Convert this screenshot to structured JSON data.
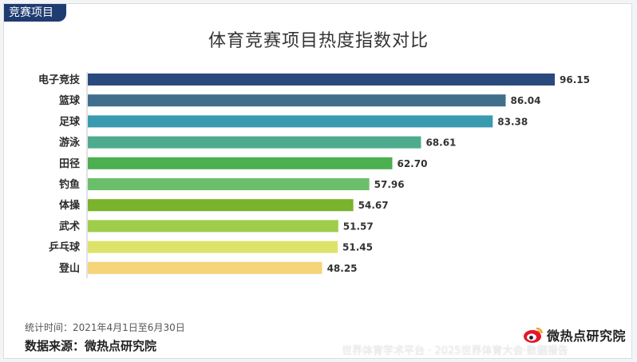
{
  "tag": "竞赛项目",
  "chart_data": {
    "type": "bar",
    "orientation": "horizontal",
    "title": "体育竞赛项目热度指数对比",
    "categories": [
      "电子竞技",
      "篮球",
      "足球",
      "游泳",
      "田径",
      "钓鱼",
      "体操",
      "武术",
      "乒乓球",
      "登山"
    ],
    "values": [
      96.15,
      86.04,
      83.38,
      68.61,
      62.7,
      57.96,
      54.67,
      51.57,
      51.45,
      48.25
    ],
    "value_labels": [
      "96.15",
      "86.04",
      "83.38",
      "68.61",
      "62.70",
      "57.96",
      "54.67",
      "51.57",
      "51.45",
      "48.25"
    ],
    "colors": [
      "#2a4a7e",
      "#3f6f8c",
      "#3a9bb0",
      "#4eab8e",
      "#4caf50",
      "#6cbf6a",
      "#7ab32c",
      "#9fcc4a",
      "#dde36a",
      "#f5d47a"
    ],
    "xlim": [
      0,
      100
    ],
    "grid": false,
    "legend": "none"
  },
  "footer": {
    "period": "统计时间：2021年4月1日至6月30日",
    "source": "数据来源：微热点研究院"
  },
  "logo": {
    "text": "微热点研究院",
    "icon": "weibo-eye-icon"
  },
  "watermark": "世界体育学术平台 · 2025世界体育大会·数据报告"
}
